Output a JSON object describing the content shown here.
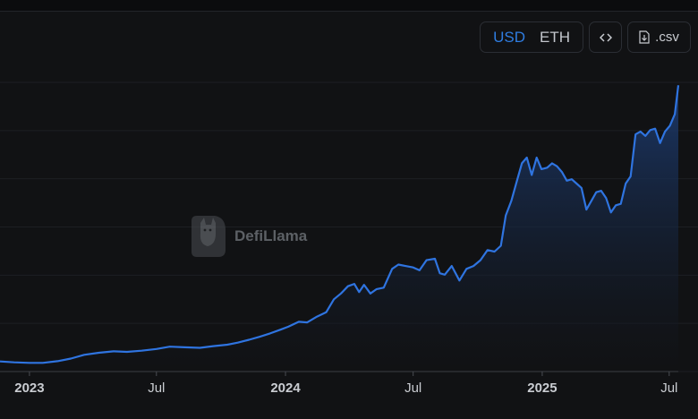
{
  "toolbar": {
    "currency_options": [
      "USD",
      "ETH"
    ],
    "selected_currency": "USD",
    "embed_icon": "code-icon",
    "csv_icon": "download-file-icon",
    "csv_label": ".csv"
  },
  "watermark": {
    "text": "DefiLlama",
    "logo": "llama-logo"
  },
  "colors": {
    "line": "#2f74e0",
    "area_top": "#1c3a6e",
    "background": "#111214"
  },
  "chart_data": {
    "type": "area",
    "x_ticks": [
      {
        "label": "2023",
        "bold": true,
        "date": "2023-01-01"
      },
      {
        "label": "Jul",
        "bold": false,
        "date": "2023-07-01"
      },
      {
        "label": "2024",
        "bold": true,
        "date": "2024-01-01"
      },
      {
        "label": "Jul",
        "bold": false,
        "date": "2024-07-01"
      },
      {
        "label": "2025",
        "bold": true,
        "date": "2025-01-01"
      },
      {
        "label": "Jul",
        "bold": false,
        "date": "2025-07-01"
      }
    ],
    "grid": true,
    "ylim": [
      0,
      100
    ],
    "series": [
      {
        "points": [
          [
            "2022-11-20",
            3.5
          ],
          [
            "2022-12-10",
            3.2
          ],
          [
            "2023-01-01",
            3.0
          ],
          [
            "2023-01-20",
            3.0
          ],
          [
            "2023-02-10",
            3.6
          ],
          [
            "2023-03-01",
            4.5
          ],
          [
            "2023-03-20",
            5.8
          ],
          [
            "2023-04-10",
            6.5
          ],
          [
            "2023-05-01",
            7.0
          ],
          [
            "2023-05-20",
            6.8
          ],
          [
            "2023-06-10",
            7.2
          ],
          [
            "2023-07-01",
            7.8
          ],
          [
            "2023-07-20",
            8.6
          ],
          [
            "2023-08-10",
            8.4
          ],
          [
            "2023-09-01",
            8.2
          ],
          [
            "2023-09-20",
            8.8
          ],
          [
            "2023-10-10",
            9.3
          ],
          [
            "2023-10-25",
            10.0
          ],
          [
            "2023-11-10",
            11.0
          ],
          [
            "2023-11-25",
            12.0
          ],
          [
            "2023-12-10",
            13.2
          ],
          [
            "2023-12-25",
            14.5
          ],
          [
            "2024-01-05",
            15.5
          ],
          [
            "2024-01-20",
            17.2
          ],
          [
            "2024-02-01",
            17.0
          ],
          [
            "2024-02-15",
            19.0
          ],
          [
            "2024-02-28",
            20.5
          ],
          [
            "2024-03-10",
            25.0
          ],
          [
            "2024-03-20",
            27.0
          ],
          [
            "2024-03-30",
            29.5
          ],
          [
            "2024-04-08",
            30.3
          ],
          [
            "2024-04-15",
            27.5
          ],
          [
            "2024-04-22",
            30.0
          ],
          [
            "2024-05-01",
            27.0
          ],
          [
            "2024-05-10",
            28.5
          ],
          [
            "2024-05-20",
            29.0
          ],
          [
            "2024-06-01",
            35.5
          ],
          [
            "2024-06-10",
            37.0
          ],
          [
            "2024-06-20",
            36.5
          ],
          [
            "2024-07-01",
            36.0
          ],
          [
            "2024-07-10",
            35.0
          ],
          [
            "2024-07-20",
            38.5
          ],
          [
            "2024-08-01",
            39.0
          ],
          [
            "2024-08-08",
            34.0
          ],
          [
            "2024-08-15",
            33.5
          ],
          [
            "2024-08-25",
            36.5
          ],
          [
            "2024-09-05",
            31.5
          ],
          [
            "2024-09-15",
            35.5
          ],
          [
            "2024-09-25",
            36.5
          ],
          [
            "2024-10-05",
            38.5
          ],
          [
            "2024-10-15",
            42.0
          ],
          [
            "2024-10-25",
            41.5
          ],
          [
            "2024-11-03",
            43.5
          ],
          [
            "2024-11-10",
            54.0
          ],
          [
            "2024-11-18",
            59.0
          ],
          [
            "2024-11-26",
            66.0
          ],
          [
            "2024-12-03",
            72.0
          ],
          [
            "2024-12-10",
            74.0
          ],
          [
            "2024-12-17",
            68.0
          ],
          [
            "2024-12-24",
            74.0
          ],
          [
            "2024-12-31",
            70.0
          ],
          [
            "2025-01-08",
            70.5
          ],
          [
            "2025-01-15",
            72.0
          ],
          [
            "2025-01-22",
            71.0
          ],
          [
            "2025-01-29",
            69.0
          ],
          [
            "2025-02-05",
            66.0
          ],
          [
            "2025-02-12",
            66.5
          ],
          [
            "2025-02-19",
            65.0
          ],
          [
            "2025-02-26",
            63.5
          ],
          [
            "2025-03-05",
            56.0
          ],
          [
            "2025-03-12",
            59.0
          ],
          [
            "2025-03-19",
            62.0
          ],
          [
            "2025-03-26",
            62.5
          ],
          [
            "2025-04-02",
            60.0
          ],
          [
            "2025-04-09",
            55.0
          ],
          [
            "2025-04-16",
            57.5
          ],
          [
            "2025-04-23",
            58.0
          ],
          [
            "2025-04-30",
            65.0
          ],
          [
            "2025-05-07",
            67.5
          ],
          [
            "2025-05-14",
            82.0
          ],
          [
            "2025-05-21",
            83.0
          ],
          [
            "2025-05-28",
            81.5
          ],
          [
            "2025-06-04",
            83.5
          ],
          [
            "2025-06-11",
            84.0
          ],
          [
            "2025-06-18",
            79.0
          ],
          [
            "2025-06-25",
            83.0
          ],
          [
            "2025-07-02",
            85.0
          ],
          [
            "2025-07-09",
            89.0
          ],
          [
            "2025-07-14",
            99.0
          ]
        ]
      }
    ]
  }
}
